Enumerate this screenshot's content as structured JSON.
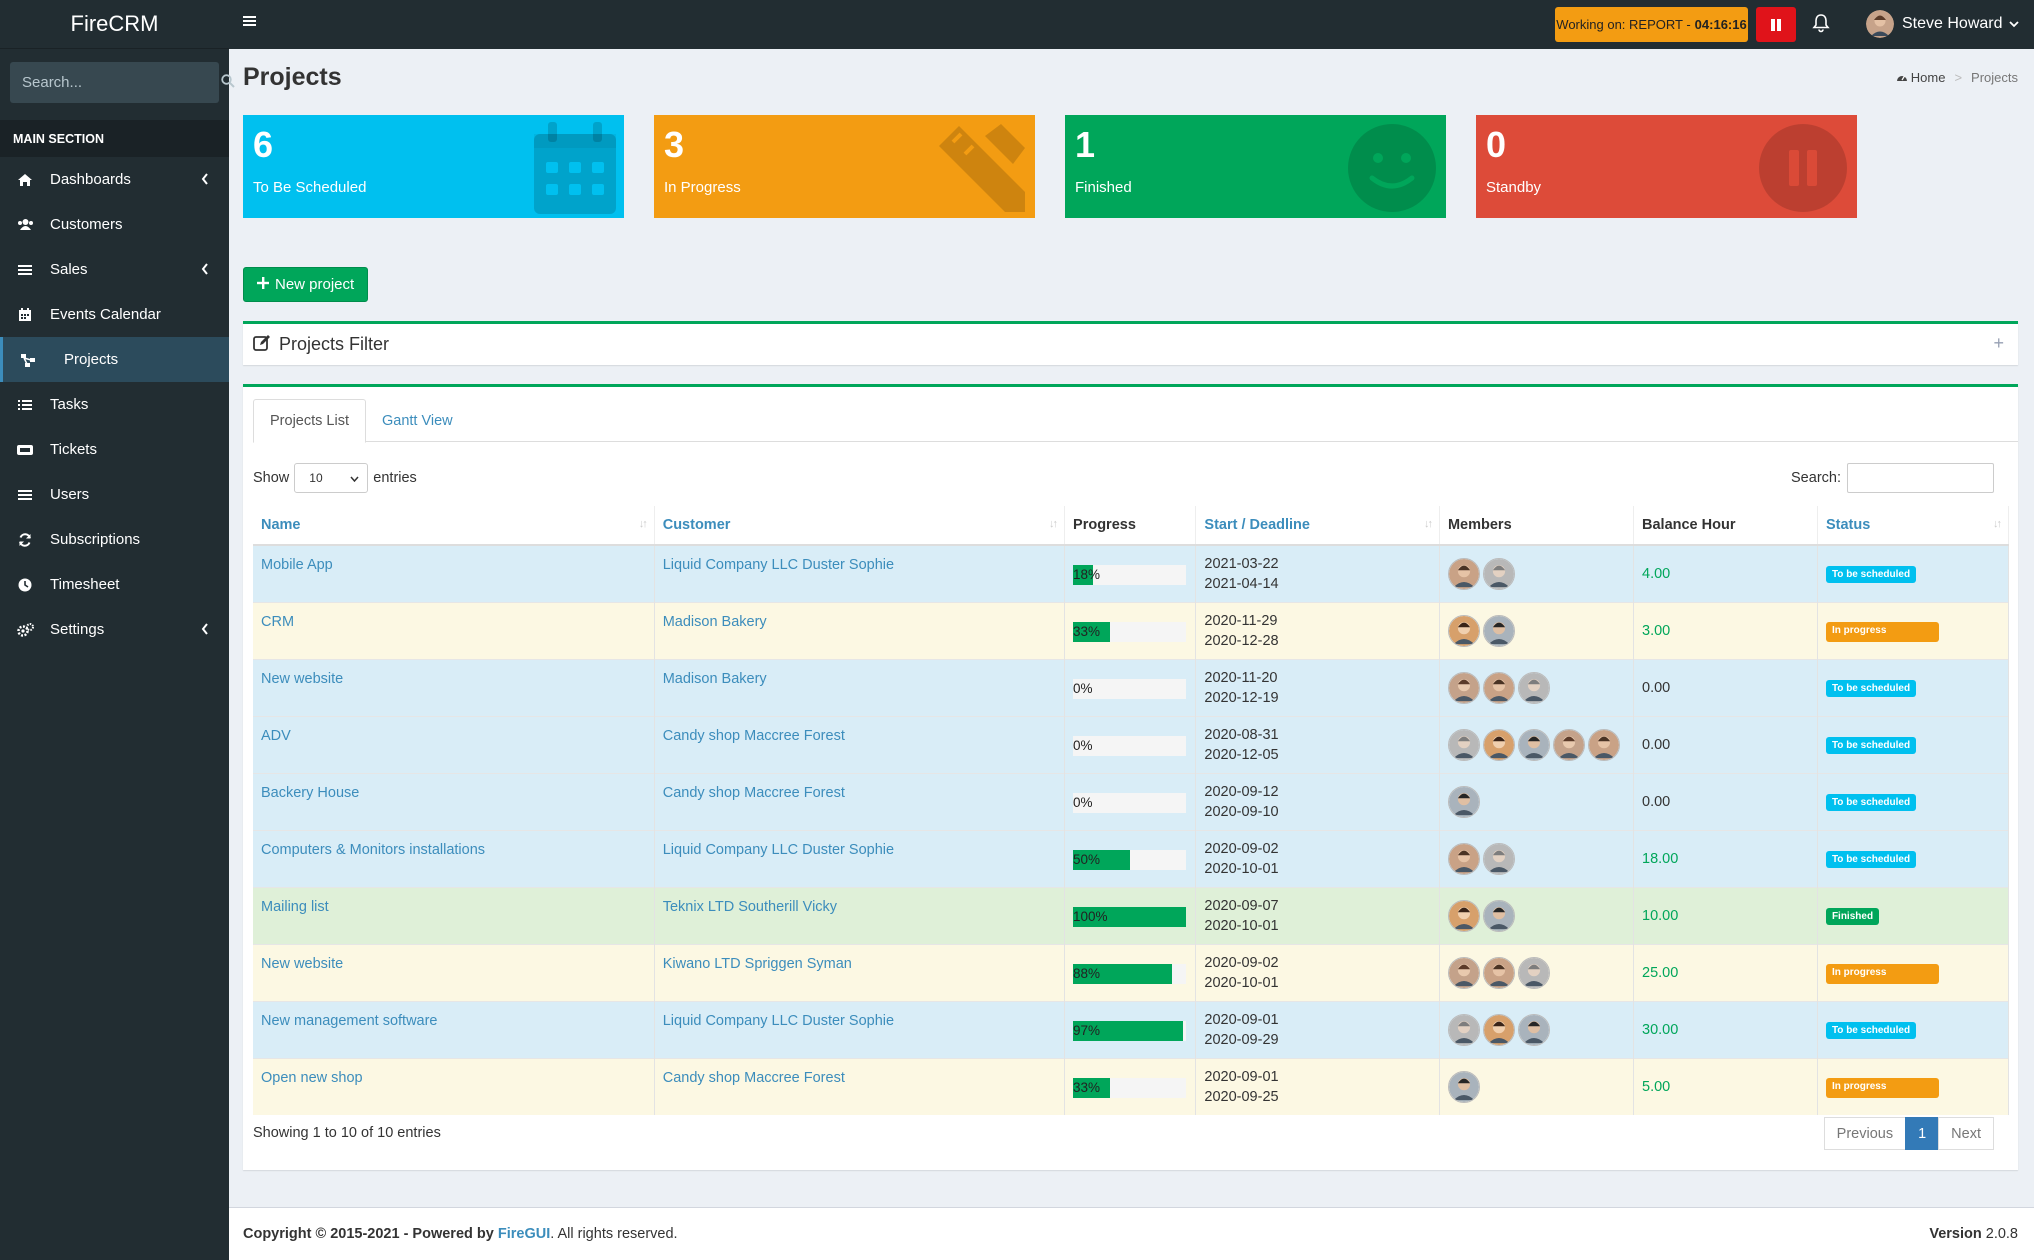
{
  "app": {
    "logo": "FireCRM"
  },
  "sidebar": {
    "search_placeholder": "Search...",
    "section_label": "MAIN SECTION",
    "items": [
      {
        "label": "Dashboards",
        "icon": "home-icon",
        "has_children": true
      },
      {
        "label": "Customers",
        "icon": "users-icon",
        "has_children": false
      },
      {
        "label": "Sales",
        "icon": "list-icon",
        "has_children": true
      },
      {
        "label": "Events Calendar",
        "icon": "calendar-icon",
        "has_children": false
      },
      {
        "label": "Projects",
        "icon": "sitemap-icon",
        "has_children": false,
        "active": true
      },
      {
        "label": "Tasks",
        "icon": "tasks-icon",
        "has_children": false
      },
      {
        "label": "Tickets",
        "icon": "ticket-icon",
        "has_children": false
      },
      {
        "label": "Users",
        "icon": "list-icon",
        "has_children": false
      },
      {
        "label": "Subscriptions",
        "icon": "refresh-icon",
        "has_children": false
      },
      {
        "label": "Timesheet",
        "icon": "clock-icon",
        "has_children": false
      },
      {
        "label": "Settings",
        "icon": "cogs-icon",
        "has_children": true
      }
    ]
  },
  "topbar": {
    "working_prefix": "Working on: REPORT - ",
    "working_timer": "04:16:16",
    "user_name": "Steve Howard"
  },
  "page": {
    "title": "Projects",
    "breadcrumb_home": "Home",
    "breadcrumb_current": "Projects"
  },
  "stats": [
    {
      "value": "6",
      "label": "To Be Scheduled",
      "color": "#00c0ef",
      "icon": "calendar-icon"
    },
    {
      "value": "3",
      "label": "In Progress",
      "color": "#f39c12",
      "icon": "pencil-icon"
    },
    {
      "value": "1",
      "label": "Finished",
      "color": "#00a65a",
      "icon": "smile-icon"
    },
    {
      "value": "0",
      "label": "Standby",
      "color": "#dd4b39",
      "icon": "pause-circle-icon"
    }
  ],
  "actions": {
    "new_project": "New project"
  },
  "filter": {
    "title": "Projects Filter"
  },
  "tabs": [
    "Projects List",
    "Gantt View"
  ],
  "table": {
    "show_label": "Show",
    "entries_value": "10",
    "entries_label": "entries",
    "search_label": "Search:",
    "columns": [
      "Name",
      "Customer",
      "Progress",
      "Start / Deadline",
      "Members",
      "Balance Hour",
      "Status"
    ],
    "rows": [
      {
        "name": "Mobile App",
        "customer": "Liquid Company LLC Duster Sophie",
        "progress": 18,
        "progress_label": "18%",
        "start": "2021-03-22",
        "deadline": "2021-04-14",
        "members": 2,
        "balance": "4.00",
        "status": "To be scheduled"
      },
      {
        "name": "CRM",
        "customer": "Madison Bakery",
        "progress": 33,
        "progress_label": "33%",
        "start": "2020-11-29",
        "deadline": "2020-12-28",
        "members": 2,
        "balance": "3.00",
        "status": "In progress"
      },
      {
        "name": "New website",
        "customer": "Madison Bakery",
        "progress": 0,
        "progress_label": "0%",
        "start": "2020-11-20",
        "deadline": "2020-12-19",
        "members": 3,
        "balance": "0.00",
        "status": "To be scheduled"
      },
      {
        "name": "ADV",
        "customer": "Candy shop Maccree Forest",
        "progress": 0,
        "progress_label": "0%",
        "start": "2020-08-31",
        "deadline": "2020-12-05",
        "members": 5,
        "balance": "0.00",
        "status": "To be scheduled"
      },
      {
        "name": "Backery House",
        "customer": "Candy shop Maccree Forest",
        "progress": 0,
        "progress_label": "0%",
        "start": "2020-09-12",
        "deadline": "2020-09-10",
        "members": 1,
        "balance": "0.00",
        "status": "To be scheduled"
      },
      {
        "name": "Computers & Monitors installations",
        "customer": "Liquid Company LLC Duster Sophie",
        "progress": 50,
        "progress_label": "50%",
        "start": "2020-09-02",
        "deadline": "2020-10-01",
        "members": 2,
        "balance": "18.00",
        "status": "To be scheduled"
      },
      {
        "name": "Mailing list",
        "customer": "Teknix LTD Southerill Vicky",
        "progress": 100,
        "progress_label": "100%",
        "start": "2020-09-07",
        "deadline": "2020-10-01",
        "members": 2,
        "balance": "10.00",
        "status": "Finished"
      },
      {
        "name": "New website",
        "customer": "Kiwano LTD Spriggen Syman",
        "progress": 88,
        "progress_label": "88%",
        "start": "2020-09-02",
        "deadline": "2020-10-01",
        "members": 3,
        "balance": "25.00",
        "status": "In progress"
      },
      {
        "name": "New management software",
        "customer": "Liquid Company LLC Duster Sophie",
        "progress": 97,
        "progress_label": "97%",
        "start": "2020-09-01",
        "deadline": "2020-09-29",
        "members": 3,
        "balance": "30.00",
        "status": "To be scheduled"
      },
      {
        "name": "Open new shop",
        "customer": "Candy shop Maccree Forest",
        "progress": 33,
        "progress_label": "33%",
        "start": "2020-09-01",
        "deadline": "2020-09-25",
        "members": 1,
        "balance": "5.00",
        "status": "In progress"
      }
    ],
    "info": "Showing 1 to 10 of 10 entries",
    "pagination": {
      "previous": "Previous",
      "current": "1",
      "next": "Next"
    }
  },
  "footer": {
    "copyright": "Copyright © 2015-2021 - Powered by",
    "brand": "FireGUI",
    "rights": ". All rights reserved.",
    "version_label": "Version",
    "version_value": "2.0.8"
  }
}
